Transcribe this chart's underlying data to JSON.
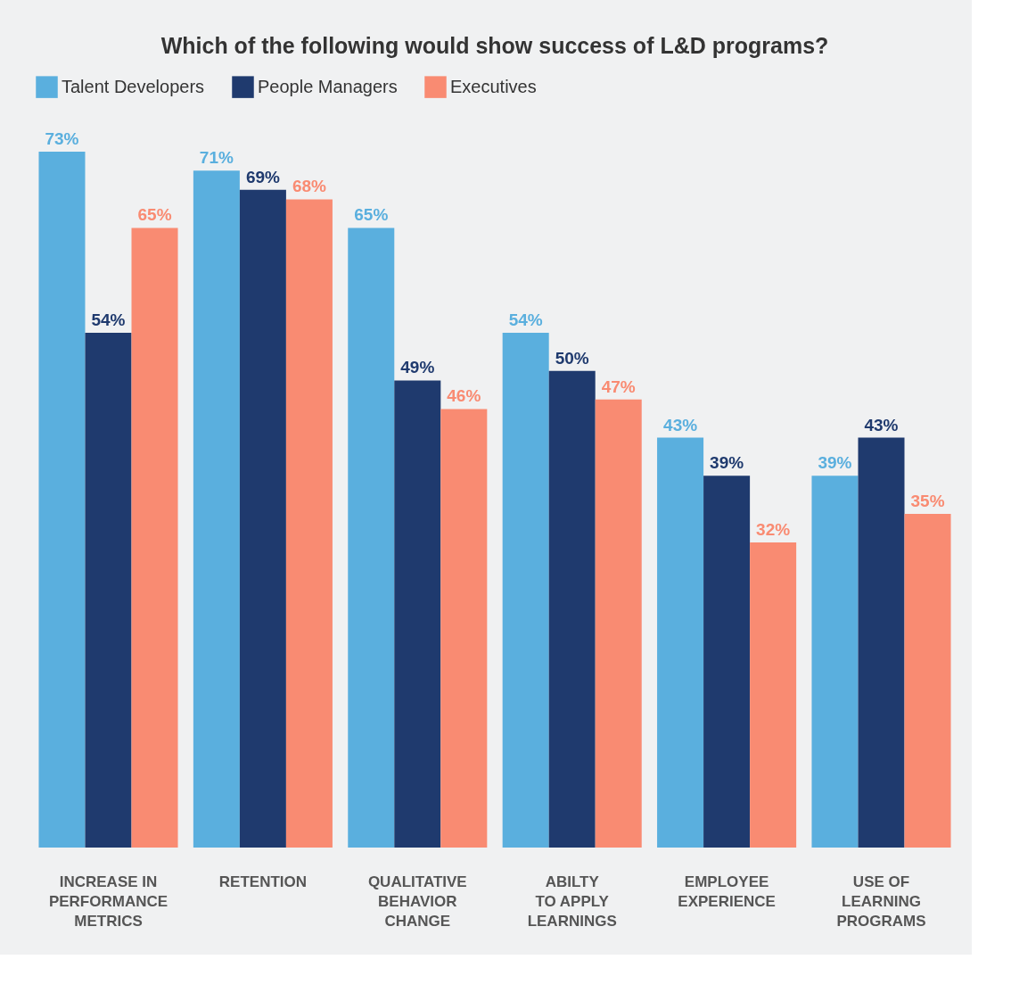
{
  "chart_data": {
    "type": "bar",
    "title": "Which of the following would show success of L&D programs?",
    "categories": [
      "INCREASE IN\nPERFORMANCE\nMETRICS",
      "RETENTION",
      "QUALITATIVE\nBEHAVIOR\nCHANGE",
      "ABILTY\nTO APPLY\nLEARNINGS",
      "EMPLOYEE\nEXPERIENCE",
      "USE OF\nLEARNING\nPROGRAMS"
    ],
    "series": [
      {
        "name": "Talent Developers",
        "color": "#5aafde",
        "values": [
          73,
          71,
          65,
          54,
          43,
          39
        ],
        "value_labels": [
          "73%",
          "71%",
          "65%",
          "54%",
          "43%",
          "39%"
        ]
      },
      {
        "name": "People Managers",
        "color": "#1f3a6e",
        "values": [
          54,
          69,
          49,
          50,
          39,
          43
        ],
        "value_labels": [
          "54%",
          "69%",
          "49%",
          "50%",
          "39%",
          "43%"
        ]
      },
      {
        "name": "Executives",
        "color": "#f98b72",
        "values": [
          65,
          68,
          46,
          47,
          32,
          35
        ],
        "value_labels": [
          "65%",
          "68%",
          "46%",
          "47%",
          "32%",
          "35%"
        ]
      }
    ],
    "legend": "top"
  }
}
